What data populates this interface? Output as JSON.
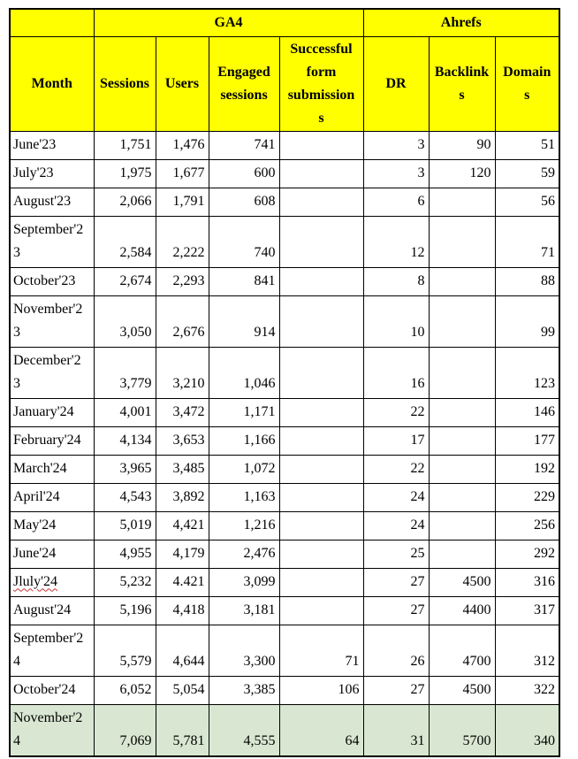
{
  "table": {
    "colors": {
      "header_bg": "#ffff00",
      "highlight_row_bg": "#d9e7d2",
      "border": "#000000",
      "text": "#000000",
      "spellcheck_underline": "#cc3333"
    },
    "column_groups": [
      {
        "label": "",
        "span": 1
      },
      {
        "label": "GA4",
        "span": 4
      },
      {
        "label": "Ahrefs",
        "span": 3
      }
    ],
    "columns": [
      {
        "key": "month",
        "label": "Month"
      },
      {
        "key": "sessions",
        "label": "Sessions"
      },
      {
        "key": "users",
        "label": "Users"
      },
      {
        "key": "engaged",
        "label": "Engaged sessions"
      },
      {
        "key": "forms",
        "label": "Successful form submissions"
      },
      {
        "key": "dr",
        "label": "DR"
      },
      {
        "key": "backlinks",
        "label": "Backlinks"
      },
      {
        "key": "domains",
        "label": "Domains"
      }
    ],
    "rows": [
      {
        "month": "June'23",
        "values": [
          "1,751",
          "1,476",
          "741",
          "",
          "3",
          "90",
          "51"
        ],
        "highlight": false,
        "misspelled": false
      },
      {
        "month": "July'23",
        "values": [
          "1,975",
          "1,677",
          "600",
          "",
          "3",
          "120",
          "59"
        ],
        "highlight": false,
        "misspelled": false
      },
      {
        "month": "August'23",
        "values": [
          "2,066",
          "1,791",
          "608",
          "",
          "6",
          "",
          "56"
        ],
        "highlight": false,
        "misspelled": false
      },
      {
        "month": "September'23",
        "values": [
          "2,584",
          "2,222",
          "740",
          "",
          "12",
          "",
          "71"
        ],
        "highlight": false,
        "misspelled": false
      },
      {
        "month": "October'23",
        "values": [
          "2,674",
          "2,293",
          "841",
          "",
          "8",
          "",
          "88"
        ],
        "highlight": false,
        "misspelled": false
      },
      {
        "month": "November'23",
        "values": [
          "3,050",
          "2,676",
          "914",
          "",
          "10",
          "",
          "99"
        ],
        "highlight": false,
        "misspelled": false
      },
      {
        "month": "December'23",
        "values": [
          "3,779",
          "3,210",
          "1,046",
          "",
          "16",
          "",
          "123"
        ],
        "highlight": false,
        "misspelled": false
      },
      {
        "month": "January'24",
        "values": [
          "4,001",
          "3,472",
          "1,171",
          "",
          "22",
          "",
          "146"
        ],
        "highlight": false,
        "misspelled": false
      },
      {
        "month": "February'24",
        "values": [
          "4,134",
          "3,653",
          "1,166",
          "",
          "17",
          "",
          "177"
        ],
        "highlight": false,
        "misspelled": false
      },
      {
        "month": "March'24",
        "values": [
          "3,965",
          "3,485",
          "1,072",
          "",
          "22",
          "",
          "192"
        ],
        "highlight": false,
        "misspelled": false
      },
      {
        "month": "April'24",
        "values": [
          "4,543",
          "3,892",
          "1,163",
          "",
          "24",
          "",
          "229"
        ],
        "highlight": false,
        "misspelled": false
      },
      {
        "month": "May'24",
        "values": [
          "5,019",
          "4,421",
          "1,216",
          "",
          "24",
          "",
          "256"
        ],
        "highlight": false,
        "misspelled": false
      },
      {
        "month": "June'24",
        "values": [
          "4,955",
          "4,179",
          "2,476",
          "",
          "25",
          "",
          "292"
        ],
        "highlight": false,
        "misspelled": false
      },
      {
        "month": "Jluly'24",
        "values": [
          "5,232",
          "4.421",
          "3,099",
          "",
          "27",
          "4500",
          "316"
        ],
        "highlight": false,
        "misspelled": true
      },
      {
        "month": "August'24",
        "values": [
          "5,196",
          "4,418",
          "3,181",
          "",
          "27",
          "4400",
          "317"
        ],
        "highlight": false,
        "misspelled": false
      },
      {
        "month": "September'24",
        "values": [
          "5,579",
          "4,644",
          "3,300",
          "71",
          "26",
          "4700",
          "312"
        ],
        "highlight": false,
        "misspelled": false
      },
      {
        "month": "October'24",
        "values": [
          "6,052",
          "5,054",
          "3,385",
          "106",
          "27",
          "4500",
          "322"
        ],
        "highlight": false,
        "misspelled": false
      },
      {
        "month": "November'24",
        "values": [
          "7,069",
          "5,781",
          "4,555",
          "64",
          "31",
          "5700",
          "340"
        ],
        "highlight": true,
        "misspelled": false
      }
    ]
  }
}
